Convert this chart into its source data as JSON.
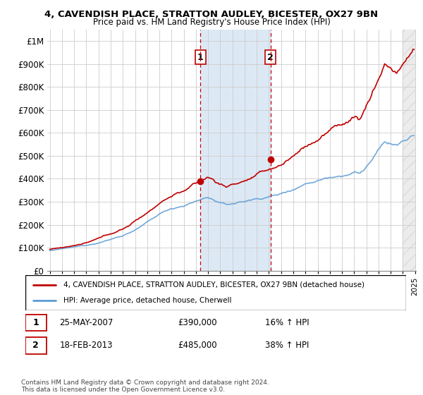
{
  "title_line1": "4, CAVENDISH PLACE, STRATTON AUDLEY, BICESTER, OX27 9BN",
  "title_line2": "Price paid vs. HM Land Registry's House Price Index (HPI)",
  "ylim": [
    0,
    1050000
  ],
  "yticks": [
    0,
    100000,
    200000,
    300000,
    400000,
    500000,
    600000,
    700000,
    800000,
    900000,
    1000000
  ],
  "ytick_labels": [
    "£0",
    "£100K",
    "£200K",
    "£300K",
    "£400K",
    "£500K",
    "£600K",
    "£700K",
    "£800K",
    "£900K",
    "£1M"
  ],
  "hpi_color": "#5b9bd5",
  "price_color": "#c00000",
  "marker_color": "#c00000",
  "shaded_color": "#dce9f5",
  "vline_color": "#c00000",
  "background_color": "#ffffff",
  "grid_color": "#cccccc",
  "legend_label_price": "4, CAVENDISH PLACE, STRATTON AUDLEY, BICESTER, OX27 9BN (detached house)",
  "legend_label_hpi": "HPI: Average price, detached house, Cherwell",
  "transaction1_date": "25-MAY-2007",
  "transaction1_price": "£390,000",
  "transaction1_hpi": "16% ↑ HPI",
  "transaction1_year": 2007.38,
  "transaction1_value": 390000,
  "transaction2_date": "18-FEB-2013",
  "transaction2_price": "£485,000",
  "transaction2_hpi": "38% ↑ HPI",
  "transaction2_year": 2013.12,
  "transaction2_value": 485000,
  "footer": "Contains HM Land Registry data © Crown copyright and database right 2024.\nThis data is licensed under the Open Government Licence v3.0.",
  "start_year": 1995,
  "end_year": 2025
}
